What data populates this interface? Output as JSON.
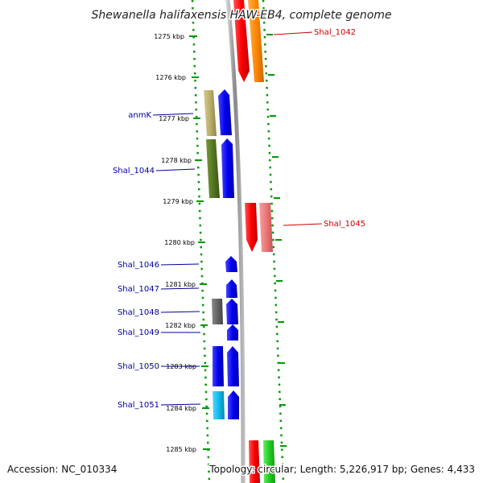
{
  "title": "Shewanella halifaxensis HAW-EB4, complete genome",
  "footer": {
    "accession": "Accession: NC_010334",
    "topology": "Topology: circular; Length: 5,226,917 bp; Genes: 4,433"
  },
  "colors": {
    "forward_label": "#cc0000",
    "reverse_label": "#000099",
    "red": "#ff0000",
    "salmon": "#ee7777",
    "orange": "#ff8800",
    "blue": "#0000ee",
    "khaki": "#b8ae6a",
    "olive": "#557722",
    "gray": "#666666",
    "cyan": "#11bbee",
    "green": "#22cc22",
    "ruler": "#009900",
    "backbone": "#999999"
  },
  "ruler_ticks": [
    {
      "label": "1275 kbp"
    },
    {
      "label": "1276 kbp"
    },
    {
      "label": "1277 kbp"
    },
    {
      "label": "1278 kbp"
    },
    {
      "label": "1279 kbp"
    },
    {
      "label": "1280 kbp"
    },
    {
      "label": "1281 kbp"
    },
    {
      "label": "1282 kbp"
    },
    {
      "label": "1283 kbp"
    },
    {
      "label": "1284 kbp"
    },
    {
      "label": "1285 kbp"
    }
  ],
  "gene_labels": [
    {
      "name": "Shal_1042",
      "strand": "forward"
    },
    {
      "name": "Shal_1045",
      "strand": "forward"
    },
    {
      "name": "anmK",
      "strand": "reverse"
    },
    {
      "name": "Shal_1044",
      "strand": "reverse"
    },
    {
      "name": "Shal_1046",
      "strand": "reverse"
    },
    {
      "name": "Shal_1047",
      "strand": "reverse"
    },
    {
      "name": "Shal_1048",
      "strand": "reverse"
    },
    {
      "name": "Shal_1049",
      "strand": "reverse"
    },
    {
      "name": "Shal_1050",
      "strand": "reverse"
    },
    {
      "name": "Shal_1051",
      "strand": "reverse"
    }
  ]
}
